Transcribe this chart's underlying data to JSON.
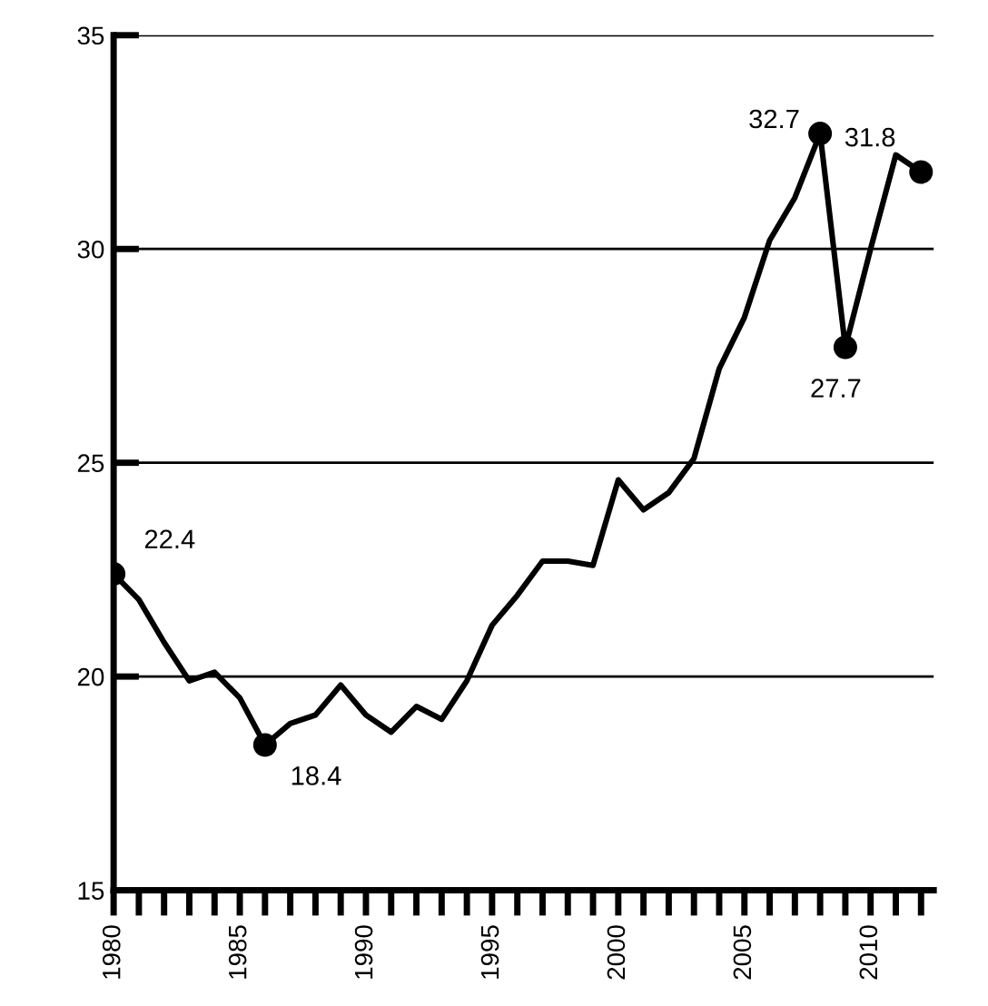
{
  "chart_data": {
    "type": "line",
    "x": [
      1980,
      1981,
      1982,
      1983,
      1984,
      1985,
      1986,
      1987,
      1988,
      1989,
      1990,
      1991,
      1992,
      1993,
      1994,
      1995,
      1996,
      1997,
      1998,
      1999,
      2000,
      2001,
      2002,
      2003,
      2004,
      2005,
      2006,
      2007,
      2008,
      2009,
      2010,
      2011,
      2012
    ],
    "series": [
      {
        "color": "#000000",
        "values": [
          22.4,
          21.8,
          20.8,
          19.9,
          20.1,
          19.5,
          18.4,
          18.9,
          19.1,
          19.8,
          19.1,
          18.7,
          19.3,
          19.0,
          19.9,
          21.2,
          21.9,
          22.7,
          22.7,
          22.6,
          24.6,
          23.9,
          24.3,
          25.1,
          27.2,
          28.4,
          30.2,
          31.2,
          32.7,
          27.7,
          30.0,
          32.2,
          31.8
        ]
      },
      {
        "type": "scatter",
        "color": "#000000",
        "marker": "circle",
        "x": [
          1980,
          1986,
          2008,
          2009,
          2012
        ],
        "values": [
          22.4,
          18.4,
          32.7,
          27.7,
          31.8
        ]
      }
    ],
    "annotations": [
      {
        "text": "22.4",
        "x": 1980,
        "y": 22.4
      },
      {
        "text": "18.4",
        "x": 1986,
        "y": 18.4
      },
      {
        "text": "32.7",
        "x": 2008,
        "y": 32.7
      },
      {
        "text": "27.7",
        "x": 2009,
        "y": 27.7
      },
      {
        "text": "31.8",
        "x": 2012,
        "y": 31.8
      }
    ],
    "xlim": [
      1980,
      2012.5
    ],
    "xticks": [
      1980,
      {
        "value": 1981,
        "label": null
      },
      {
        "value": 1982,
        "label": null
      },
      {
        "value": 1983,
        "label": null
      },
      {
        "value": 1984,
        "label": null
      },
      1985,
      {
        "value": 1986,
        "label": null
      },
      {
        "value": 1987,
        "label": null
      },
      {
        "value": 1988,
        "label": null
      },
      {
        "value": 1989,
        "label": null
      },
      1990,
      {
        "value": 1991,
        "label": null
      },
      {
        "value": 1992,
        "label": null
      },
      {
        "value": 1993,
        "label": null
      },
      {
        "value": 1994,
        "label": null
      },
      1995,
      {
        "value": 1996,
        "label": null
      },
      {
        "value": 1997,
        "label": null
      },
      {
        "value": 1998,
        "label": null
      },
      {
        "value": 1999,
        "label": null
      },
      2000,
      {
        "value": 2001,
        "label": null
      },
      {
        "value": 2002,
        "label": null
      },
      {
        "value": 2003,
        "label": null
      },
      {
        "value": 2004,
        "label": null
      },
      2005,
      {
        "value": 2006,
        "label": null
      },
      {
        "value": 2007,
        "label": null
      },
      {
        "value": 2008,
        "label": null
      },
      {
        "value": 2009,
        "label": null
      },
      2010,
      {
        "value": 2011,
        "label": null
      },
      {
        "value": 2012,
        "label": null
      }
    ],
    "ylim": [
      15,
      35
    ],
    "yticks": [
      15,
      20,
      25,
      30,
      35
    ],
    "grid": "y",
    "legend": false
  }
}
